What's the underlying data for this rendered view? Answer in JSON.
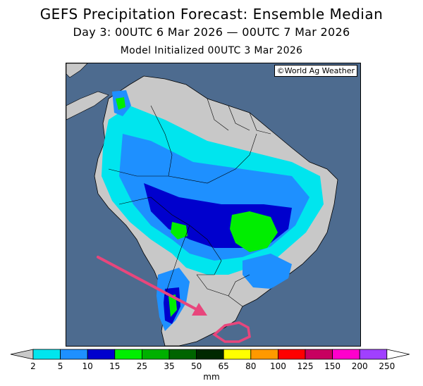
{
  "header": {
    "title": "GEFS Precipitation Forecast: Ensemble Median",
    "valid_period": "Day 3: 00UTC 6 Mar 2026 — 00UTC 7 Mar 2026",
    "initialized": "Model Initialized 00UTC 3 Mar 2026"
  },
  "map": {
    "credit": "©World Ag Weather",
    "ocean_color": "#4d6b8f",
    "land_color": "#c8c8c8",
    "annotation_arrow_color": "#e8467c",
    "annotation_circle_color": "#e8467c"
  },
  "legend": {
    "unit": "mm",
    "labels": [
      "2",
      "5",
      "10",
      "15",
      "25",
      "35",
      "50",
      "65",
      "80",
      "100",
      "125",
      "150",
      "200",
      "250"
    ],
    "colors": [
      "#00e5ee",
      "#1e90ff",
      "#0000cd",
      "#00ee00",
      "#00b000",
      "#006400",
      "#002800",
      "#ffff00",
      "#ff9900",
      "#ff0000",
      "#c80060",
      "#ff00cc",
      "#a040ff"
    ],
    "under_color": "#c8c8c8",
    "over_color": "#ffffff"
  }
}
